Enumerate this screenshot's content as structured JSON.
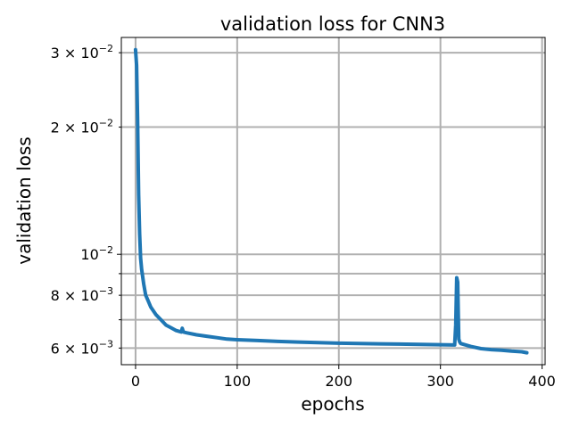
{
  "chart_data": {
    "type": "line",
    "title": "validation loss for CNN3",
    "xlabel": "epochs",
    "ylabel": "validation loss",
    "xlim": [
      -14,
      403
    ],
    "ylim": [
      0.00548,
      0.0326
    ],
    "yscale": "log",
    "grid": true,
    "color": "#1f77b4",
    "x_ticks": [
      {
        "value": 0,
        "label": "0"
      },
      {
        "value": 100,
        "label": "100"
      },
      {
        "value": 200,
        "label": "200"
      },
      {
        "value": 300,
        "label": "300"
      },
      {
        "value": 400,
        "label": "400"
      }
    ],
    "y_major_ticks": [
      {
        "value": 0.01,
        "label": "10",
        "exp": "−2"
      }
    ],
    "y_minor_ticks": [
      {
        "value": 0.006,
        "label": "6 × 10",
        "exp": "−3"
      },
      {
        "value": 0.007,
        "label": "",
        "exp": ""
      },
      {
        "value": 0.008,
        "label": "8 × 10",
        "exp": "−3"
      },
      {
        "value": 0.009,
        "label": "",
        "exp": ""
      },
      {
        "value": 0.02,
        "label": "2 × 10",
        "exp": "−2"
      },
      {
        "value": 0.03,
        "label": "3 × 10",
        "exp": "−2"
      }
    ],
    "series": [
      {
        "x": [
          0,
          1,
          2,
          3,
          4,
          5,
          6,
          8,
          10,
          12,
          15,
          20,
          25,
          30,
          35,
          40,
          45,
          46,
          47,
          50,
          60,
          70,
          80,
          90,
          100,
          120,
          140,
          160,
          180,
          200,
          220,
          240,
          260,
          280,
          300,
          314,
          315,
          316,
          317,
          318,
          319,
          320,
          330,
          340,
          350,
          360,
          370,
          380,
          385
        ],
        "y": [
          0.0305,
          0.028,
          0.021,
          0.0138,
          0.0112,
          0.0098,
          0.0092,
          0.0085,
          0.008,
          0.0078,
          0.0075,
          0.0072,
          0.007,
          0.0068,
          0.0067,
          0.0066,
          0.00655,
          0.00668,
          0.00655,
          0.00652,
          0.00645,
          0.0064,
          0.00635,
          0.0063,
          0.00628,
          0.00625,
          0.00622,
          0.0062,
          0.00618,
          0.00616,
          0.00615,
          0.00614,
          0.00613,
          0.00612,
          0.00611,
          0.0061,
          0.0068,
          0.0088,
          0.0086,
          0.0063,
          0.0062,
          0.00615,
          0.00605,
          0.00598,
          0.00595,
          0.00593,
          0.0059,
          0.00588,
          0.00585
        ]
      }
    ]
  }
}
